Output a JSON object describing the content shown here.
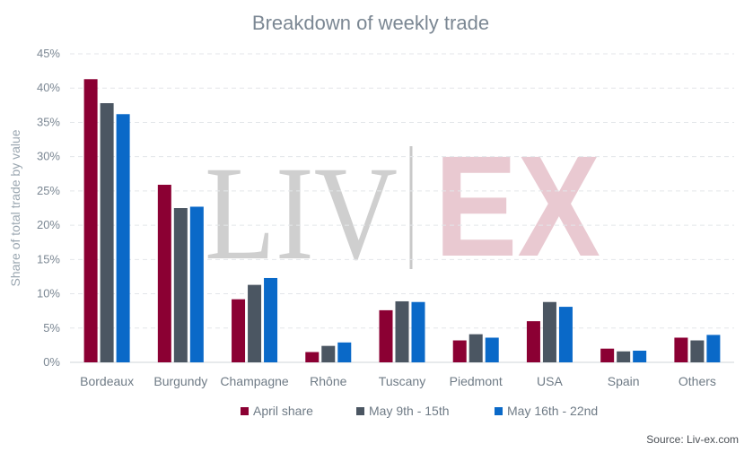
{
  "chart_data": {
    "type": "bar",
    "title": "Breakdown of weekly trade",
    "xlabel": "",
    "ylabel": "Share of total trade by value",
    "ylim": [
      0,
      45
    ],
    "yticks": [
      "0%",
      "5%",
      "10%",
      "15%",
      "20%",
      "25%",
      "30%",
      "35%",
      "40%",
      "45%"
    ],
    "grid": true,
    "legend_position": "bottom",
    "categories": [
      "Bordeaux",
      "Burgundy",
      "Champagne",
      "Rhône",
      "Tuscany",
      "Piedmont",
      "USA",
      "Spain",
      "Others"
    ],
    "series": [
      {
        "name": "April share",
        "color": "#8b0033",
        "values": [
          41.3,
          25.9,
          9.2,
          1.5,
          7.6,
          3.2,
          6.0,
          2.0,
          3.6
        ]
      },
      {
        "name": "May 9th - 15th",
        "color": "#4b5662",
        "values": [
          37.8,
          22.5,
          11.3,
          2.4,
          8.9,
          4.1,
          8.8,
          1.6,
          3.2
        ]
      },
      {
        "name": "May 16th - 22nd",
        "color": "#0a69c8",
        "values": [
          36.2,
          22.7,
          12.3,
          2.9,
          8.8,
          3.6,
          8.1,
          1.7,
          4.0
        ]
      }
    ]
  },
  "watermark": {
    "left": "LIV",
    "right": "EX"
  },
  "source": "Source: Liv-ex.com"
}
